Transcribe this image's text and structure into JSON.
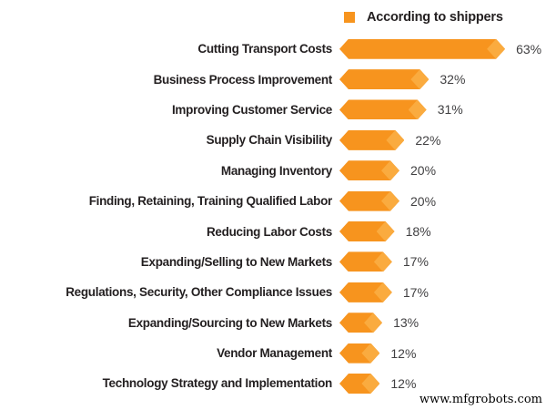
{
  "page": {
    "background": "#ffffff"
  },
  "legend": {
    "label": "According to shippers",
    "swatch_color": "#F7941E"
  },
  "colors": {
    "bar": "#F7941E",
    "bar_tip_diamond": "#FAAB3F",
    "category_text": "#231F20",
    "value_text": "#414042"
  },
  "watermark": "www.mfgrobots.com",
  "chart_data": {
    "type": "bar",
    "orientation": "horizontal",
    "title": "",
    "legend_entries": [
      "According to shippers"
    ],
    "legend_position": "top-right",
    "grid": false,
    "xlim": [
      0,
      70
    ],
    "value_suffix": "%",
    "categories": [
      "Cutting Transport Costs",
      "Business Process Improvement",
      "Improving Customer Service",
      "Supply Chain Visibility",
      "Managing Inventory",
      "Finding, Retaining, Training Qualified Labor",
      "Reducing Labor Costs",
      "Expanding/Selling to New Markets",
      "Regulations, Security, Other Compliance Issues",
      "Expanding/Sourcing to New Markets",
      "Vendor Management",
      "Technology Strategy and Implementation"
    ],
    "values": [
      63,
      32,
      31,
      22,
      20,
      20,
      18,
      17,
      17,
      13,
      12,
      12
    ],
    "value_labels": [
      "63%",
      "32%",
      "31%",
      "22%",
      "20%",
      "20%",
      "18%",
      "17%",
      "17%",
      "13%",
      "12%",
      "12%"
    ]
  }
}
